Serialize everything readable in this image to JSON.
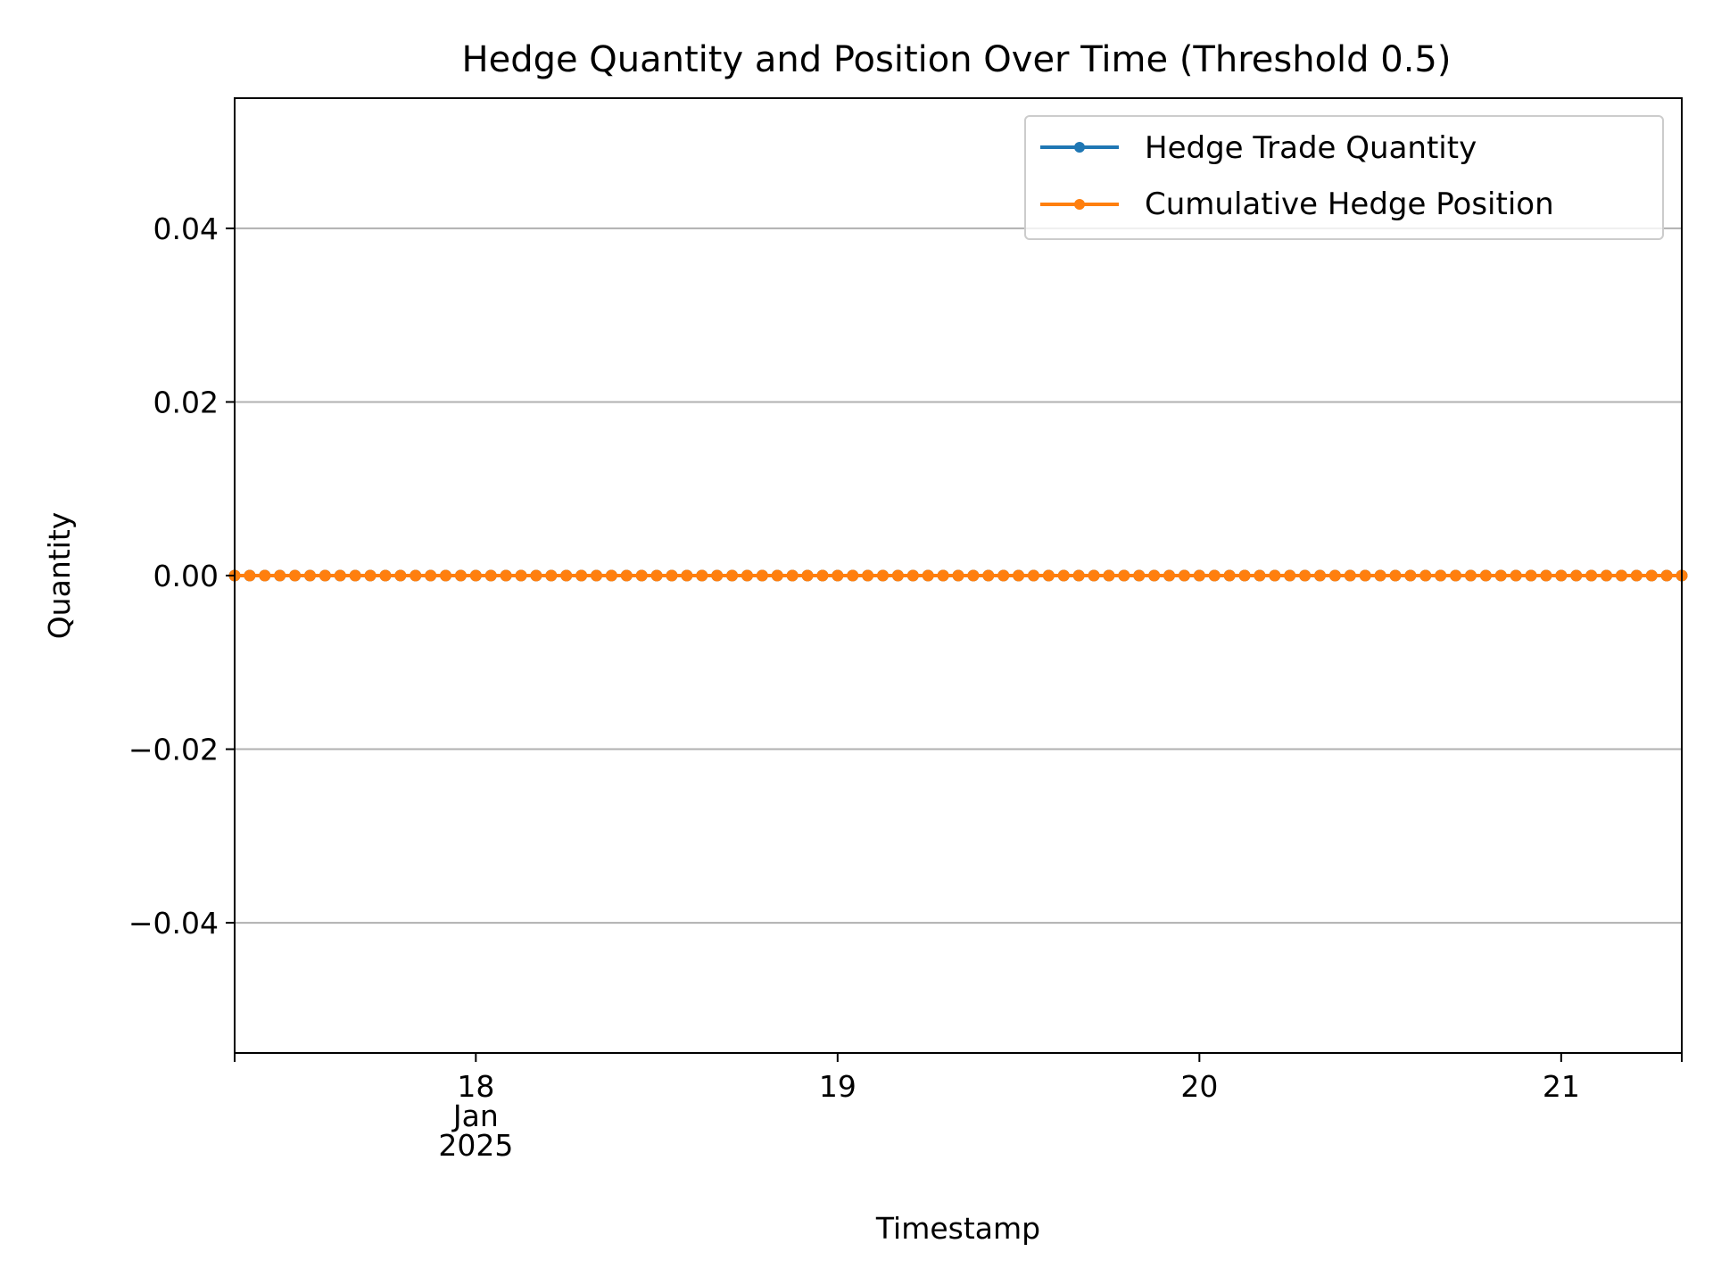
{
  "chart_data": {
    "type": "line",
    "title": "Hedge Quantity and Position Over Time (Threshold 0.5)",
    "xlabel": "Timestamp",
    "ylabel": "Quantity",
    "x_type": "datetime",
    "x_start": "2025-01-17T08:00",
    "x_end": "2025-01-21T08:00",
    "x_step_hours": 1,
    "xlim": [
      "2025-01-17T08:00",
      "2025-01-21T08:00"
    ],
    "ylim": [
      -0.055,
      0.055
    ],
    "x_ticks": [
      {
        "date": "2025-01-18T00:00",
        "lines": [
          "18",
          "Jan",
          "2025"
        ]
      },
      {
        "date": "2025-01-19T00:00",
        "lines": [
          "19"
        ]
      },
      {
        "date": "2025-01-20T00:00",
        "lines": [
          "20"
        ]
      },
      {
        "date": "2025-01-21T00:00",
        "lines": [
          "21"
        ]
      }
    ],
    "y_ticks": [
      {
        "value": 0.04,
        "label": "0.04"
      },
      {
        "value": 0.02,
        "label": "0.02"
      },
      {
        "value": 0.0,
        "label": "0.00"
      },
      {
        "value": -0.02,
        "label": "−0.02"
      },
      {
        "value": -0.04,
        "label": "−0.04"
      }
    ],
    "grid": "y",
    "legend_position": "top-right",
    "series": [
      {
        "name": "Hedge Trade Quantity",
        "color": "#1f77b4",
        "value": 0
      },
      {
        "name": "Cumulative Hedge Position",
        "color": "#ff7f0e",
        "value": 0
      }
    ]
  }
}
